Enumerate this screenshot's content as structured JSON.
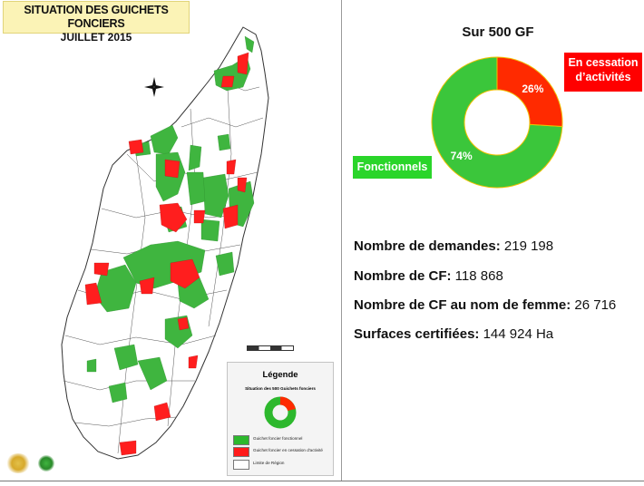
{
  "map": {
    "title_line1": "SITUATION DES GUICHETS FONCIERS",
    "title_line2": "JUILLET 2015",
    "legend": {
      "title": "Légende",
      "subtitle": "Situation des 500 Guichets fonciers",
      "items": [
        {
          "label": "Guichet foncier fonctionnel",
          "color": "#2db82d"
        },
        {
          "label": "Guichet foncier en cessation d'activité",
          "color": "#ff1a1a"
        },
        {
          "label": "Limite de Région",
          "color": "#ffffff"
        }
      ]
    }
  },
  "chart_data": {
    "type": "pie",
    "title": "Sur 500 GF",
    "slices": [
      {
        "label": "Fonctionnels",
        "value": 74,
        "value_label": "74%",
        "color": "#3bc63b"
      },
      {
        "label": "En cessation d’activités",
        "value": 26,
        "value_label": "26%",
        "color": "#ff2a00"
      }
    ]
  },
  "stats": [
    {
      "label": "Nombre de demandes:",
      "value": " 219 198"
    },
    {
      "label": "Nombre de CF:",
      "value": " 118 868"
    },
    {
      "label": "Nombre de CF au nom de femme:",
      "value": " 26 716"
    },
    {
      "label": "Surfaces certifiées:",
      "value": " 144 924 Ha"
    }
  ]
}
